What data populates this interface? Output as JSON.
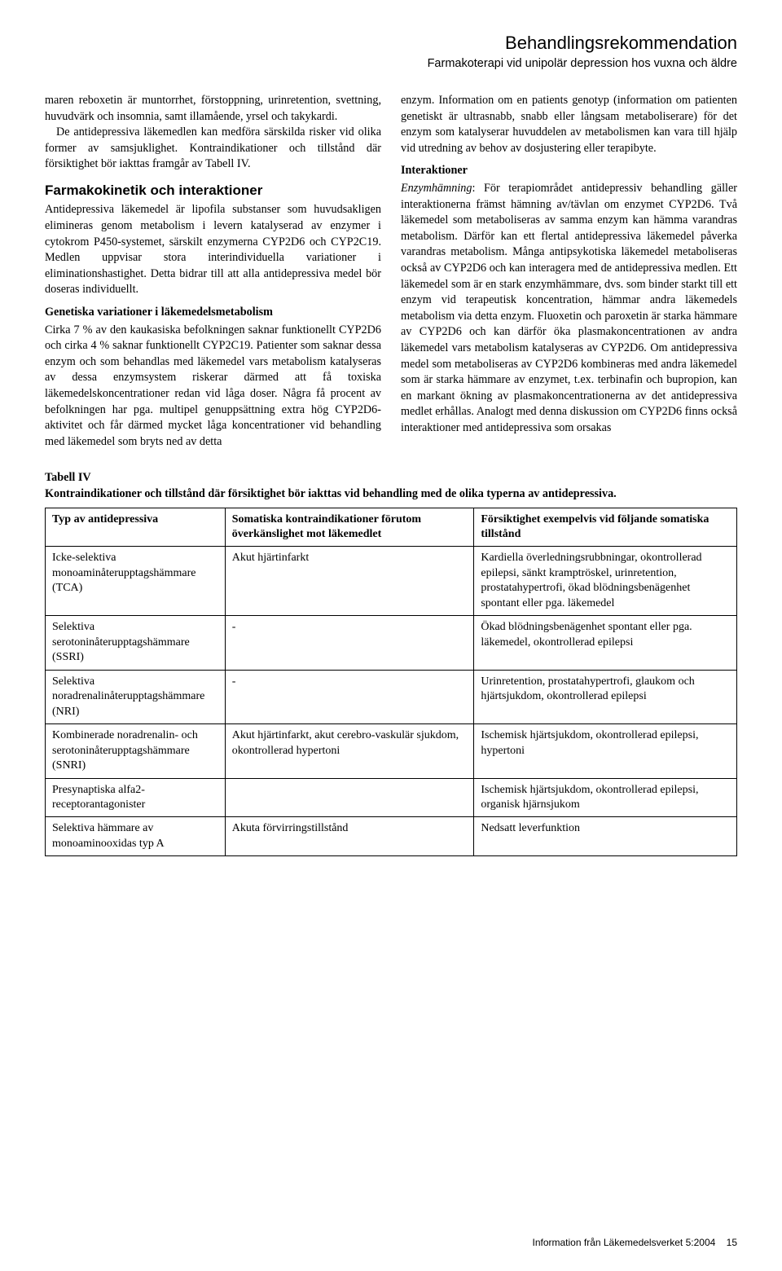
{
  "header": {
    "title": "Behandlingsrekommendation",
    "subtitle": "Farmakoterapi vid unipolär depression hos vuxna och äldre"
  },
  "left": {
    "p1": "maren reboxetin är muntorrhet, förstoppning, urinretention, svettning, huvudvärk och insomnia, samt illamående, yrsel och takykardi.",
    "p2": "De antidepressiva läkemedlen kan medföra särskilda risker vid olika former av samsjuklighet. Kontraindikationer och tillstånd där försiktighet bör iakttas framgår av Tabell IV.",
    "h1": "Farmakokinetik och interaktioner",
    "p3": "Antidepressiva läkemedel är lipofila substanser som huvudsakligen elimineras genom metabolism i levern katalyserad av enzymer i cytokrom P450-systemet, särskilt enzymerna CYP2D6 och CYP2C19. Medlen uppvisar stora interindividuella variationer i eliminationshastighet. Detta bidrar till att alla antidepressiva medel bör doseras individuellt.",
    "sh1": "Genetiska variationer i läkemedelsmetabolism",
    "p4": "Cirka 7 % av den kaukasiska befolkningen saknar funktionellt CYP2D6 och cirka 4 % saknar funktionellt CYP2C19. Patienter som saknar dessa enzym och som behandlas med läkemedel vars metabolism katalyseras av dessa enzymsystem riskerar därmed att få toxiska läkemedelskoncentrationer redan vid låga doser. Några få procent av befolkningen har pga. multipel genuppsättning extra hög CYP2D6-aktivitet och får därmed mycket låga koncentrationer vid behandling med läkemedel som bryts ned av detta"
  },
  "right": {
    "p1": "enzym. Information om en patients genotyp (information om patienten genetiskt är ultrasnabb, snabb eller långsam metaboliserare) för det enzym som katalyserar huvuddelen av metabolismen kan vara till hjälp vid utredning av behov av dosjustering eller terapibyte.",
    "sh1": "Interaktioner",
    "p2a": "Enzymhämning",
    "p2b": ": För terapiområdet antidepressiv behandling gäller interaktionerna främst hämning av/tävlan om enzymet CYP2D6. Två läkemedel som metaboliseras av samma enzym kan hämma varandras metabolism. Därför kan ett flertal antidepressiva läkemedel påverka varandras metabolism. Många antipsykotiska läkemedel metaboliseras också av CYP2D6 och kan interagera med de antidepressiva medlen. Ett läkemedel som är en stark enzymhämmare, dvs. som binder starkt till ett enzym vid terapeutisk koncentration, hämmar andra läkemedels metabolism via detta enzym. Fluoxetin och paroxetin är starka hämmare av CYP2D6 och kan därför öka plasmakoncentrationen av andra läkemedel vars metabolism katalyseras av CYP2D6. Om antidepressiva medel som metaboliseras av CYP2D6 kombineras med andra läkemedel som är starka hämmare av enzymet, t.ex. terbinafin och bupropion, kan en markant ökning av plasmakoncentrationerna av det antidepressiva medlet erhållas. Analogt med denna diskussion om CYP2D6 finns också interaktioner med antidepressiva som orsakas"
  },
  "table": {
    "label": "Tabell IV",
    "caption": "Kontraindikationer och tillstånd där försiktighet bör iakttas vid behandling med de olika typerna av antidepressiva.",
    "columns": {
      "c1": "Typ av antidepressiva",
      "c2": "Somatiska kontraindikationer förutom överkänslighet mot läkemedlet",
      "c3": "Försiktighet exempelvis vid följande somatiska tillstånd"
    },
    "rows": [
      {
        "type": "Icke-selektiva monoaminåterupptagshämmare (TCA)",
        "contra": "Akut hjärtinfarkt",
        "caution": "Kardiella överledningsrubbningar, okontrollerad epilepsi, sänkt kramptröskel, urinretention, prostatahypertrofi, ökad blödningsbenägenhet spontant eller pga. läkemedel"
      },
      {
        "type": "Selektiva serotoninåterupptagshämmare (SSRI)",
        "contra": "-",
        "caution": "Ökad blödningsbenägenhet spontant eller pga. läkemedel, okontrollerad epilepsi"
      },
      {
        "type": "Selektiva noradrenalinåterupptagshämmare (NRI)",
        "contra": "-",
        "caution": "Urinretention, prostatahypertrofi, glaukom och hjärtsjukdom, okontrollerad epilepsi"
      },
      {
        "type": "Kombinerade noradrenalin- och serotoninåterupptagshämmare (SNRI)",
        "contra": "Akut hjärtinfarkt, akut cerebro-vaskulär sjukdom, okontrollerad hypertoni",
        "caution": "Ischemisk hjärtsjukdom, okontrollerad epilepsi, hypertoni"
      },
      {
        "type": "Presynaptiska alfa2-receptorantagonister",
        "contra": "",
        "caution": "Ischemisk hjärtsjukdom, okontrollerad epilepsi, organisk hjärnsjukom"
      },
      {
        "type": "Selektiva hämmare av monoaminooxidas typ A",
        "contra": "Akuta förvirringstillstånd",
        "caution": "Nedsatt leverfunktion"
      }
    ]
  },
  "footer": {
    "text": "Information från Läkemedelsverket 5:2004",
    "page": "15"
  }
}
